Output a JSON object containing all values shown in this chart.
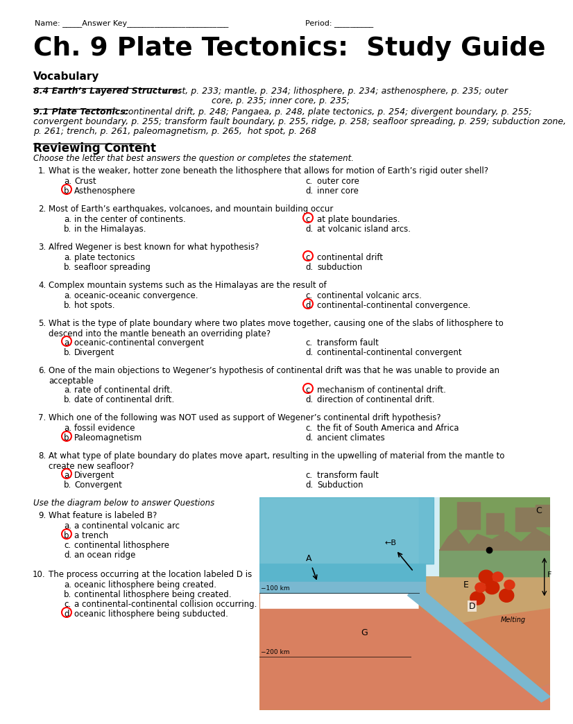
{
  "bg_color": "#ffffff",
  "name_line_left": "Name: _____Answer Key__________________________",
  "name_line_right": "Period: __________",
  "title": "Ch. 9 Plate Tectonics:  Study Guide",
  "vocab_header": "Vocabulary",
  "vocab1_bold": "8.4 Earth’s Layered Structure:",
  "vocab1_rest": "  crust, p. 233; mantle, p. 234; lithosphere, p. 234; asthenosphere, p. 235; outer",
  "vocab1_cont": "core, p. 235; inner core, p. 235;",
  "vocab2_bold": "9.1 Plate Tectonics:",
  "vocab2_rest": "  continental drift, p. 248; Pangaea, p. 248, plate tectonics, p. 254; divergent boundary, p. 255;",
  "vocab2_line2": "convergent boundary, p. 255; transform fault boundary, p. 255, ridge, p. 258; seafloor spreading, p. 259; subduction zone,",
  "vocab2_line3": "p. 261; trench, p. 261, paleomagnetism, p. 265,  hot spot, p. 268",
  "review_header": "Reviewing Content",
  "review_italic": "Choose the letter that best answers the question or completes the statement.",
  "questions": [
    {
      "num": "1.",
      "question": "What is the weaker, hotter zone beneath the lithosphere that allows for motion of Earth’s rigid outer shell?",
      "q_lines": 1,
      "answers": [
        {
          "col": 0,
          "letter": "a.",
          "text": "Crust"
        },
        {
          "col": 0,
          "letter": "b.",
          "text": "Asthenosphere",
          "circled": true
        },
        {
          "col": 1,
          "letter": "c.",
          "text": "outer core"
        },
        {
          "col": 1,
          "letter": "d.",
          "text": "inner core"
        }
      ]
    },
    {
      "num": "2.",
      "question": "Most of Earth’s earthquakes, volcanoes, and mountain building occur",
      "q_lines": 1,
      "answers": [
        {
          "col": 0,
          "letter": "a.",
          "text": "in the center of continents."
        },
        {
          "col": 0,
          "letter": "b.",
          "text": "in the Himalayas."
        },
        {
          "col": 1,
          "letter": "c.",
          "text": "at plate boundaries.",
          "circled": true
        },
        {
          "col": 1,
          "letter": "d.",
          "text": "at volcanic island arcs."
        }
      ]
    },
    {
      "num": "3.",
      "question": "Alfred Wegener is best known for what hypothesis?",
      "q_lines": 1,
      "answers": [
        {
          "col": 0,
          "letter": "a.",
          "text": "plate tectonics"
        },
        {
          "col": 0,
          "letter": "b.",
          "text": "seafloor spreading"
        },
        {
          "col": 1,
          "letter": "c.",
          "text": "continental drift",
          "circled": true
        },
        {
          "col": 1,
          "letter": "d.",
          "text": "subduction"
        }
      ]
    },
    {
      "num": "4.",
      "question": "Complex mountain systems such as the Himalayas are the result of",
      "q_lines": 1,
      "answers": [
        {
          "col": 0,
          "letter": "a.",
          "text": "oceanic-oceanic convergence."
        },
        {
          "col": 0,
          "letter": "b.",
          "text": "hot spots."
        },
        {
          "col": 1,
          "letter": "c.",
          "text": "continental volcanic arcs."
        },
        {
          "col": 1,
          "letter": "d.",
          "text": "continental-continental convergence.",
          "circled": true
        }
      ]
    },
    {
      "num": "5.",
      "question": "What is the type of plate boundary where two plates move together, causing one of the slabs of lithosphere to\ndescend into the mantle beneath an overriding plate?",
      "q_lines": 2,
      "answers": [
        {
          "col": 0,
          "letter": "a.",
          "text": "oceanic-continental convergent",
          "circled": true
        },
        {
          "col": 0,
          "letter": "b.",
          "text": "Divergent"
        },
        {
          "col": 1,
          "letter": "c.",
          "text": "transform fault"
        },
        {
          "col": 1,
          "letter": "d.",
          "text": "continental-continental convergent"
        }
      ]
    },
    {
      "num": "6.",
      "question": "One of the main objections to Wegener’s hypothesis of continental drift was that he was unable to provide an\nacceptable",
      "q_lines": 2,
      "answers": [
        {
          "col": 0,
          "letter": "a.",
          "text": "rate of continental drift."
        },
        {
          "col": 0,
          "letter": "b.",
          "text": "date of continental drift."
        },
        {
          "col": 1,
          "letter": "c.",
          "text": "mechanism of continental drift.",
          "circled": true
        },
        {
          "col": 1,
          "letter": "d.",
          "text": "direction of continental drift."
        }
      ]
    },
    {
      "num": "7.",
      "question": "Which one of the following was NOT used as support of Wegener’s continental drift hypothesis?",
      "q_lines": 1,
      "answers": [
        {
          "col": 0,
          "letter": "a.",
          "text": "fossil evidence"
        },
        {
          "col": 0,
          "letter": "b.",
          "text": "Paleomagnetism",
          "circled": true
        },
        {
          "col": 1,
          "letter": "c.",
          "text": "the fit of South America and Africa"
        },
        {
          "col": 1,
          "letter": "d.",
          "text": "ancient climates"
        }
      ]
    },
    {
      "num": "8.",
      "question": "At what type of plate boundary do plates move apart, resulting in the upwelling of material from the mantle to\ncreate new seafloor?",
      "q_lines": 2,
      "answers": [
        {
          "col": 0,
          "letter": "a.",
          "text": "Divergent",
          "circled": true
        },
        {
          "col": 0,
          "letter": "b.",
          "text": "Convergent"
        },
        {
          "col": 1,
          "letter": "c.",
          "text": "transform fault"
        },
        {
          "col": 1,
          "letter": "d.",
          "text": "Subduction"
        }
      ]
    }
  ],
  "diagram_italic": "Use the diagram below to answer Questions",
  "q9_num": "9.",
  "q9_question": "What feature is labeled B?",
  "q9_answers": [
    {
      "col": 0,
      "letter": "a.",
      "text": "a continental volcanic arc"
    },
    {
      "col": 0,
      "letter": "b.",
      "text": "a trench",
      "circled": true
    },
    {
      "col": 0,
      "letter": "c.",
      "text": "continental lithosphere"
    },
    {
      "col": 0,
      "letter": "d.",
      "text": "an ocean ridge"
    }
  ],
  "q10_num": "10.",
  "q10_question": "The process occurring at the location labeled D is",
  "q10_answers": [
    {
      "col": 0,
      "letter": "a.",
      "text": "oceanic lithosphere being created."
    },
    {
      "col": 0,
      "letter": "b.",
      "text": "continental lithosphere being created."
    },
    {
      "col": 0,
      "letter": "c.",
      "text": "a continental-continental collision occurring."
    },
    {
      "col": 0,
      "letter": "d.",
      "text": "oceanic lithosphere being subducted.",
      "circled": true
    }
  ]
}
